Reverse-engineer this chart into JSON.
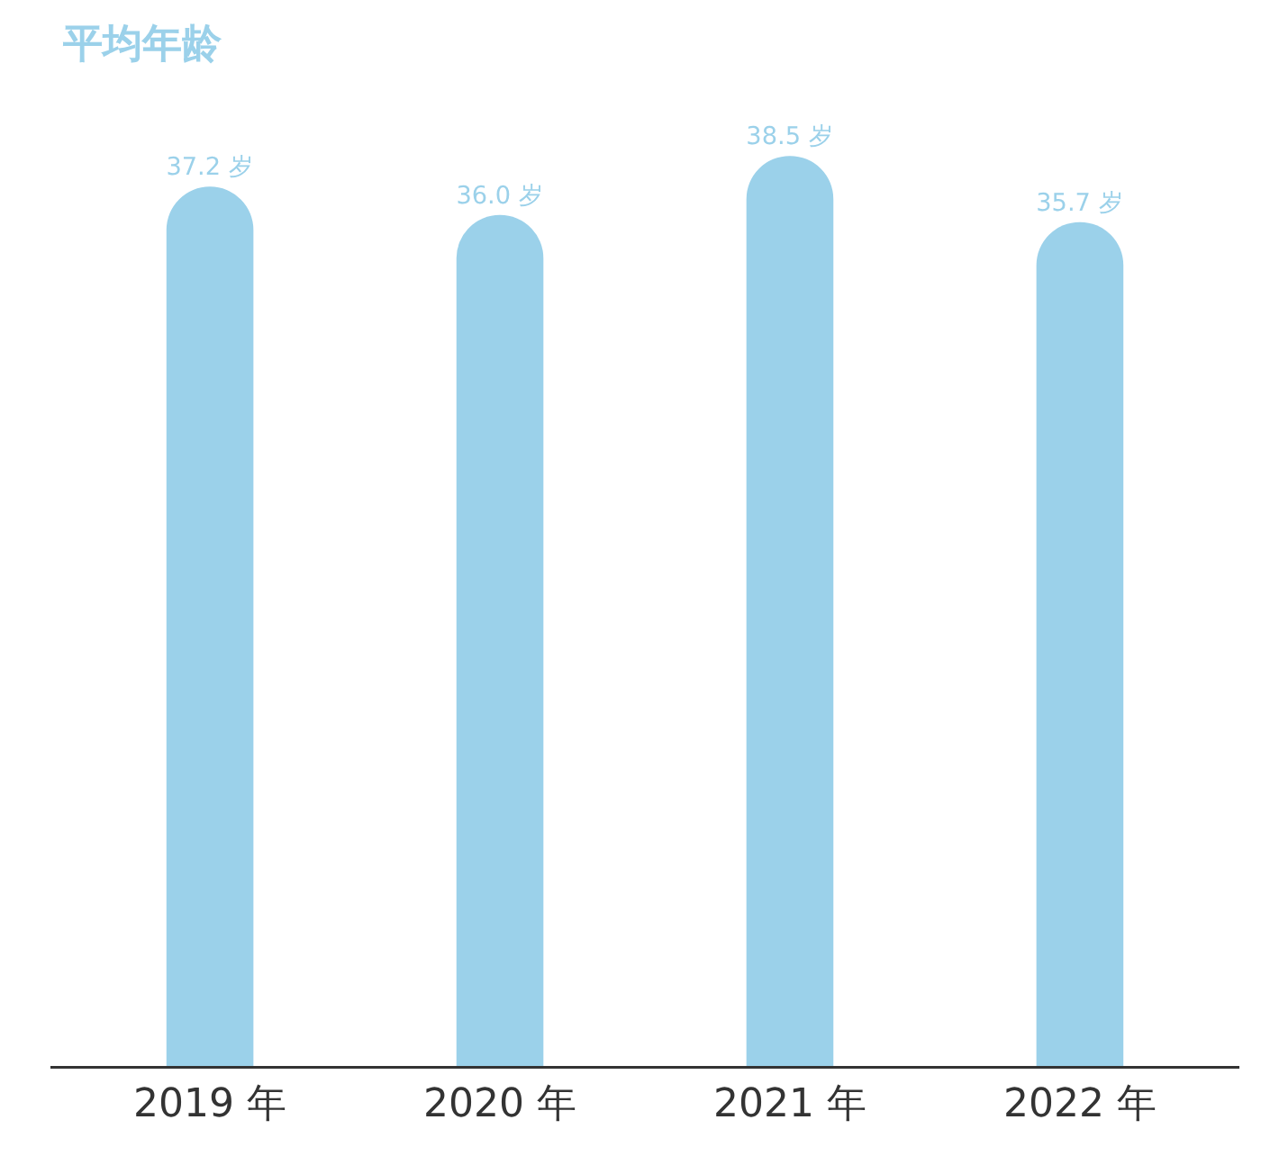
{
  "chart_data": {
    "type": "bar",
    "title": "平均年龄",
    "categories": [
      "2019 年",
      "2020 年",
      "2021 年",
      "2022 年"
    ],
    "values": [
      37.2,
      36.0,
      38.5,
      35.7
    ],
    "value_labels": [
      "37.2 岁",
      "36.0 岁",
      "38.5 岁",
      "35.7 岁"
    ],
    "color": "#9bd1ea",
    "grid": false,
    "legend": false
  }
}
